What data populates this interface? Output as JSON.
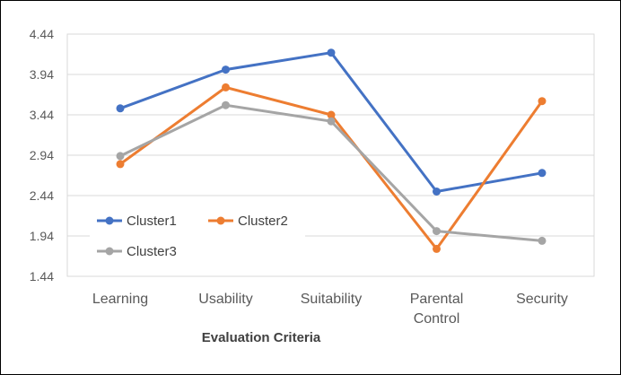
{
  "chart_data": {
    "type": "line",
    "title": "",
    "xlabel": "Evaluation Criteria",
    "ylabel": "",
    "ylim": [
      1.44,
      4.44
    ],
    "yticks": [
      "4.44",
      "3.94",
      "3.44",
      "2.94",
      "2.44",
      "1.94",
      "1.44"
    ],
    "categories": [
      [
        "Learning"
      ],
      [
        "Usability"
      ],
      [
        "Suitability"
      ],
      [
        "Parental",
        "Control"
      ],
      [
        "Security"
      ]
    ],
    "series": [
      {
        "name": "Cluster1",
        "color": "#4472C4",
        "values": [
          3.52,
          4.0,
          4.21,
          2.49,
          2.72
        ]
      },
      {
        "name": "Cluster2",
        "color": "#ED7D31",
        "values": [
          2.83,
          3.78,
          3.44,
          1.78,
          3.61
        ]
      },
      {
        "name": "Cluster3",
        "color": "#A5A5A5",
        "values": [
          2.93,
          3.56,
          3.36,
          2.0,
          1.88
        ]
      }
    ],
    "legend_position": "inside-lower-left",
    "grid": true
  }
}
